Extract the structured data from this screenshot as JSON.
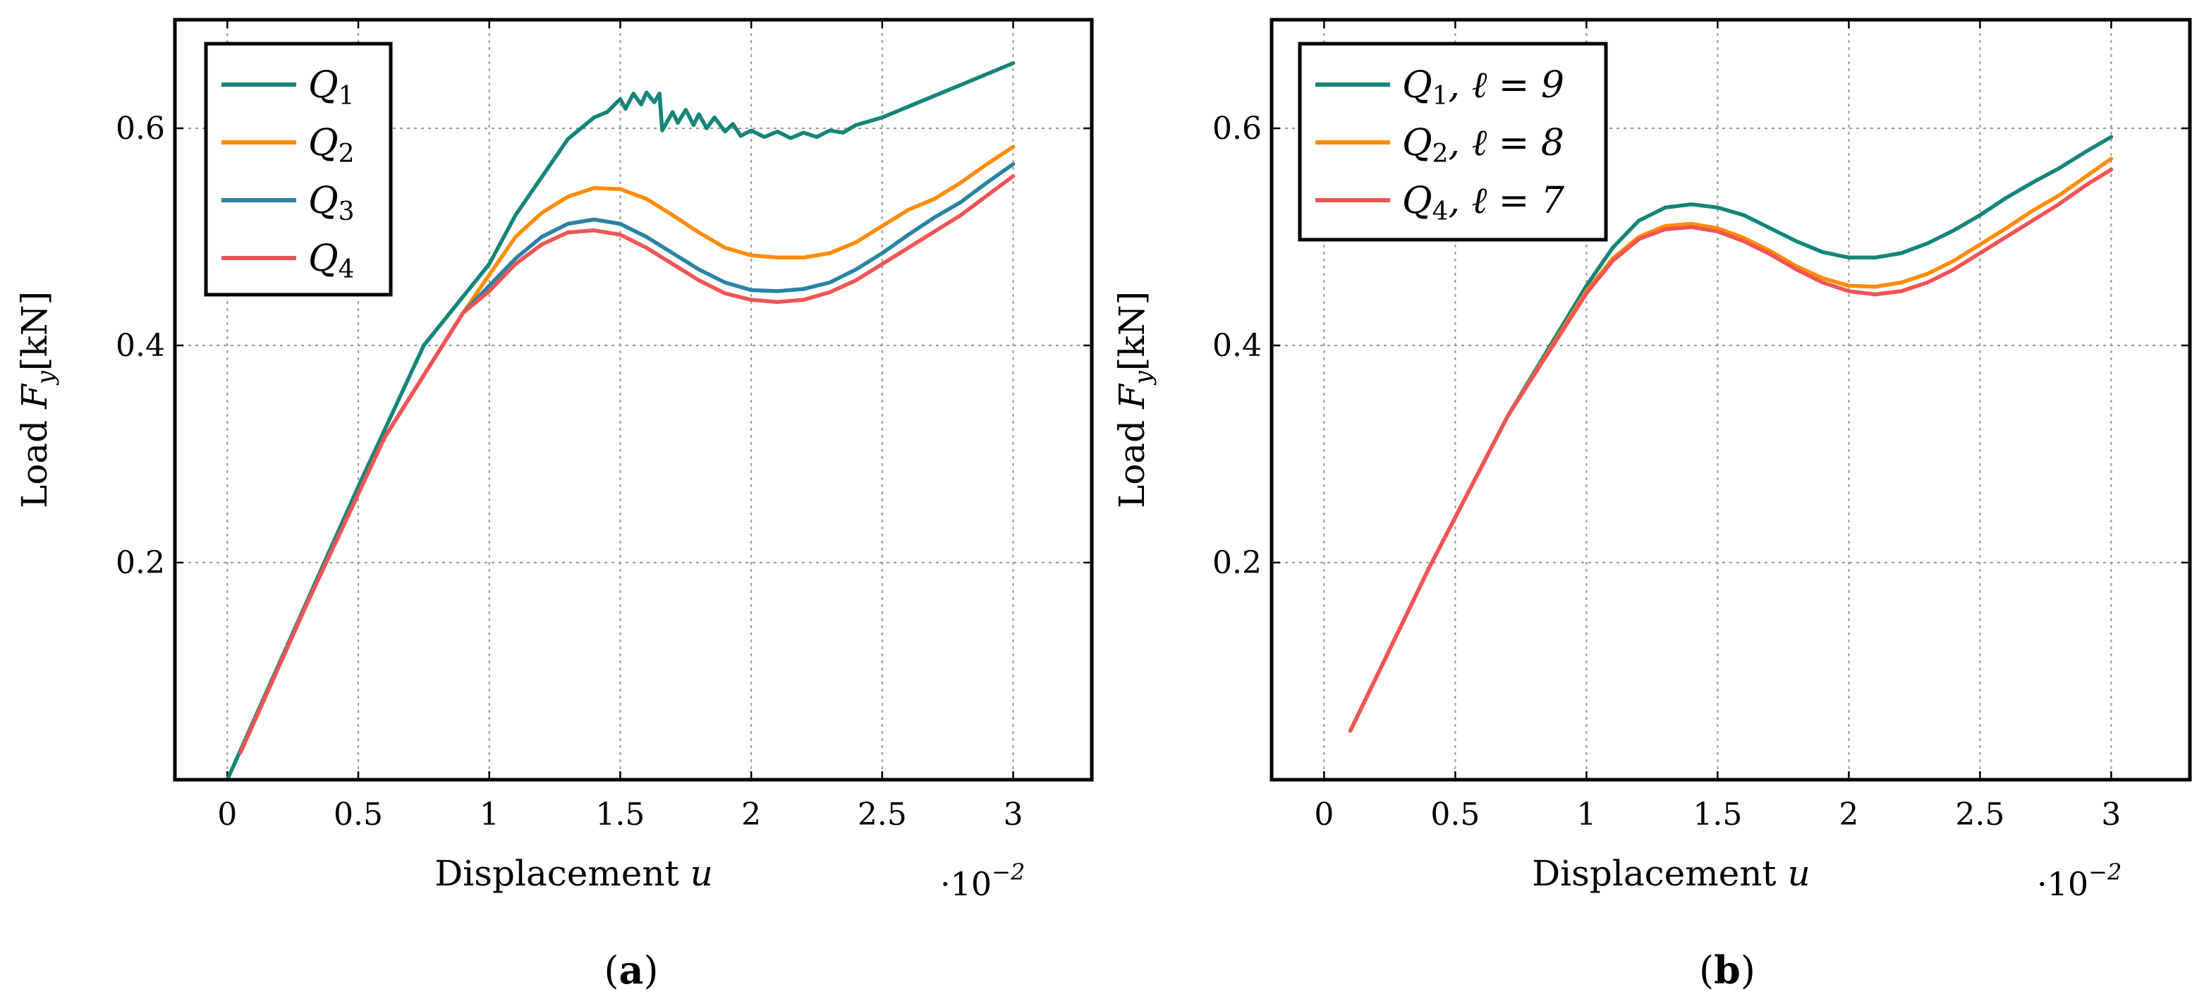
{
  "chart_data": [
    {
      "type": "line",
      "panel": "a",
      "caption_label": "a",
      "xlabel": "Displacement",
      "xlabel_var": "u",
      "ylabel": "Load",
      "ylabel_var": "F",
      "ylabel_sub": "y",
      "ylabel_unit": "[kN]",
      "x_multiplier_base": "·10",
      "x_multiplier_exp": "−2",
      "xlim": [
        -0.2,
        3.3
      ],
      "ylim": [
        0,
        0.7
      ],
      "xticks": [
        0,
        0.5,
        1,
        1.5,
        2,
        2.5,
        3
      ],
      "xtick_labels": [
        "0",
        "0.5",
        "1",
        "1.5",
        "2",
        "2.5",
        "3"
      ],
      "yticks": [
        0.2,
        0.4,
        0.6
      ],
      "ytick_labels": [
        "0.2",
        "0.4",
        "0.6"
      ],
      "grid": true,
      "legend_position": "top-left",
      "series": [
        {
          "name": "Q1",
          "label_main": "Q",
          "label_sub": "1",
          "label_suffix": "",
          "color": "#14857A",
          "x": [
            0,
            0.25,
            0.5,
            0.75,
            1.0,
            1.1,
            1.2,
            1.3,
            1.4,
            1.45,
            1.5,
            1.52,
            1.55,
            1.58,
            1.6,
            1.63,
            1.65,
            1.66,
            1.7,
            1.72,
            1.75,
            1.78,
            1.8,
            1.83,
            1.86,
            1.9,
            1.93,
            1.96,
            2.0,
            2.05,
            2.1,
            2.15,
            2.2,
            2.25,
            2.3,
            2.35,
            2.4,
            2.5,
            2.6,
            2.7,
            2.8,
            2.9,
            3.0
          ],
          "y": [
            0.0,
            0.135,
            0.27,
            0.4,
            0.475,
            0.52,
            0.555,
            0.59,
            0.61,
            0.615,
            0.627,
            0.618,
            0.632,
            0.622,
            0.633,
            0.624,
            0.632,
            0.598,
            0.615,
            0.605,
            0.617,
            0.603,
            0.613,
            0.6,
            0.61,
            0.597,
            0.604,
            0.593,
            0.598,
            0.592,
            0.597,
            0.591,
            0.596,
            0.592,
            0.598,
            0.596,
            0.603,
            0.61,
            0.62,
            0.63,
            0.64,
            0.65,
            0.66
          ]
        },
        {
          "name": "Q2",
          "label_main": "Q",
          "label_sub": "2",
          "label_suffix": "",
          "color": "#FF8C00",
          "x": [
            0.05,
            0.3,
            0.6,
            0.9,
            1.0,
            1.1,
            1.2,
            1.3,
            1.4,
            1.5,
            1.6,
            1.7,
            1.8,
            1.9,
            2.0,
            2.1,
            2.2,
            2.3,
            2.4,
            2.5,
            2.6,
            2.7,
            2.8,
            2.9,
            3.0
          ],
          "y": [
            0.025,
            0.16,
            0.315,
            0.43,
            0.465,
            0.5,
            0.522,
            0.537,
            0.545,
            0.544,
            0.535,
            0.52,
            0.504,
            0.49,
            0.483,
            0.481,
            0.481,
            0.485,
            0.495,
            0.51,
            0.525,
            0.535,
            0.55,
            0.567,
            0.583
          ]
        },
        {
          "name": "Q3",
          "label_main": "Q",
          "label_sub": "3",
          "label_suffix": "",
          "color": "#2B83A3",
          "x": [
            0.05,
            0.3,
            0.6,
            0.9,
            1.0,
            1.1,
            1.2,
            1.3,
            1.4,
            1.5,
            1.6,
            1.7,
            1.8,
            1.9,
            2.0,
            2.1,
            2.2,
            2.3,
            2.4,
            2.5,
            2.6,
            2.7,
            2.8,
            2.9,
            3.0
          ],
          "y": [
            0.025,
            0.16,
            0.315,
            0.43,
            0.455,
            0.48,
            0.5,
            0.512,
            0.516,
            0.512,
            0.5,
            0.485,
            0.47,
            0.458,
            0.451,
            0.45,
            0.452,
            0.458,
            0.47,
            0.485,
            0.502,
            0.518,
            0.532,
            0.55,
            0.567
          ]
        },
        {
          "name": "Q4",
          "label_main": "Q",
          "label_sub": "4",
          "label_suffix": "",
          "color": "#F05454",
          "x": [
            0.05,
            0.3,
            0.6,
            0.9,
            1.0,
            1.1,
            1.2,
            1.3,
            1.4,
            1.5,
            1.6,
            1.7,
            1.8,
            1.9,
            2.0,
            2.1,
            2.2,
            2.3,
            2.4,
            2.5,
            2.6,
            2.7,
            2.8,
            2.9,
            3.0
          ],
          "y": [
            0.025,
            0.16,
            0.315,
            0.43,
            0.45,
            0.475,
            0.493,
            0.504,
            0.506,
            0.502,
            0.49,
            0.475,
            0.46,
            0.448,
            0.442,
            0.44,
            0.442,
            0.449,
            0.46,
            0.475,
            0.49,
            0.505,
            0.52,
            0.538,
            0.556
          ]
        }
      ]
    },
    {
      "type": "line",
      "panel": "b",
      "caption_label": "b",
      "xlabel": "Displacement",
      "xlabel_var": "u",
      "ylabel": "Load",
      "ylabel_var": "F",
      "ylabel_sub": "y",
      "ylabel_unit": "[kN]",
      "x_multiplier_base": "·10",
      "x_multiplier_exp": "−2",
      "xlim": [
        -0.2,
        3.3
      ],
      "ylim": [
        0,
        0.7
      ],
      "xticks": [
        0,
        0.5,
        1,
        1.5,
        2,
        2.5,
        3
      ],
      "xtick_labels": [
        "0",
        "0.5",
        "1",
        "1.5",
        "2",
        "2.5",
        "3"
      ],
      "yticks": [
        0.2,
        0.4,
        0.6
      ],
      "ytick_labels": [
        "0.2",
        "0.4",
        "0.6"
      ],
      "grid": true,
      "legend_position": "top-left",
      "series": [
        {
          "name": "Q1, ℓ = 9",
          "label_main": "Q",
          "label_sub": "1",
          "label_suffix": ", ℓ = 9",
          "color": "#14857A",
          "x": [
            0.1,
            0.4,
            0.7,
            1.0,
            1.1,
            1.2,
            1.3,
            1.4,
            1.5,
            1.6,
            1.7,
            1.8,
            1.9,
            2.0,
            2.1,
            2.2,
            2.3,
            2.4,
            2.5,
            2.6,
            2.7,
            2.8,
            2.9,
            3.0
          ],
          "y": [
            0.045,
            0.195,
            0.335,
            0.455,
            0.49,
            0.515,
            0.527,
            0.53,
            0.527,
            0.52,
            0.508,
            0.496,
            0.486,
            0.481,
            0.481,
            0.485,
            0.494,
            0.506,
            0.52,
            0.536,
            0.55,
            0.563,
            0.578,
            0.592
          ]
        },
        {
          "name": "Q2, ℓ = 8",
          "label_main": "Q",
          "label_sub": "2",
          "label_suffix": ", ℓ = 8",
          "color": "#FF8C00",
          "x": [
            0.1,
            0.4,
            0.7,
            1.0,
            1.1,
            1.2,
            1.3,
            1.4,
            1.5,
            1.6,
            1.7,
            1.8,
            1.9,
            2.0,
            2.1,
            2.2,
            2.3,
            2.4,
            2.5,
            2.6,
            2.7,
            2.8,
            2.9,
            3.0
          ],
          "y": [
            0.045,
            0.195,
            0.335,
            0.45,
            0.48,
            0.5,
            0.51,
            0.512,
            0.508,
            0.499,
            0.487,
            0.473,
            0.462,
            0.455,
            0.454,
            0.458,
            0.466,
            0.478,
            0.493,
            0.508,
            0.524,
            0.538,
            0.555,
            0.572
          ]
        },
        {
          "name": "Q4, ℓ = 7",
          "label_main": "Q",
          "label_sub": "4",
          "label_suffix": ", ℓ = 7",
          "color": "#F05454",
          "x": [
            0.1,
            0.4,
            0.7,
            1.0,
            1.1,
            1.2,
            1.3,
            1.4,
            1.5,
            1.6,
            1.7,
            1.8,
            1.9,
            2.0,
            2.1,
            2.2,
            2.3,
            2.4,
            2.5,
            2.6,
            2.7,
            2.8,
            2.9,
            3.0
          ],
          "y": [
            0.045,
            0.195,
            0.335,
            0.448,
            0.478,
            0.498,
            0.507,
            0.509,
            0.505,
            0.496,
            0.484,
            0.47,
            0.458,
            0.45,
            0.447,
            0.45,
            0.458,
            0.47,
            0.485,
            0.5,
            0.515,
            0.53,
            0.547,
            0.562
          ]
        }
      ]
    }
  ]
}
